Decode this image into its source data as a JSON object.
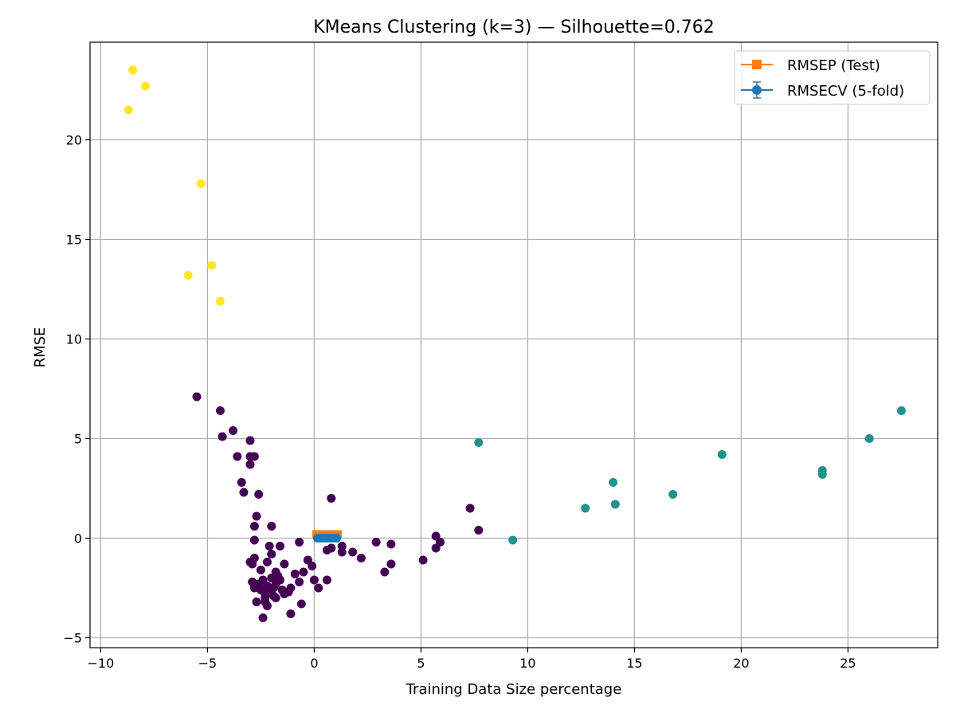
{
  "chart_data": {
    "type": "scatter",
    "title": "KMeans Clustering (k=3) — Silhouette=0.762",
    "xlabel": "Training Data Size percentage",
    "ylabel": "RMSE",
    "xlim": [
      -10.5,
      29.2
    ],
    "ylim": [
      -5.5,
      24.9
    ],
    "xticks": [
      -10,
      -5,
      0,
      5,
      10,
      15,
      20,
      25
    ],
    "yticks": [
      -5,
      0,
      5,
      10,
      15,
      20
    ],
    "xtick_labels": [
      "−10",
      "−5",
      "0",
      "5",
      "10",
      "15",
      "20",
      "25"
    ],
    "ytick_labels": [
      "−5",
      "0",
      "5",
      "10",
      "15",
      "20"
    ],
    "grid": true,
    "legend_position": "top-right",
    "colors": {
      "cluster_0": "#440154",
      "cluster_1": "#21918c",
      "cluster_2": "#fde725",
      "rmsep": "#ff7f0e",
      "rmsecv": "#1f77b4",
      "grid": "#b0b0b0"
    },
    "series": [
      {
        "name": "RMSEP (Test)",
        "kind": "line",
        "marker": "square",
        "points": [
          [
            0.1,
            0.2
          ],
          [
            0.2,
            0.2
          ],
          [
            0.3,
            0.2
          ],
          [
            0.4,
            0.2
          ],
          [
            0.5,
            0.2
          ],
          [
            0.6,
            0.2
          ],
          [
            0.7,
            0.2
          ],
          [
            0.8,
            0.2
          ],
          [
            0.9,
            0.2
          ],
          [
            1.0,
            0.2
          ],
          [
            1.1,
            0.2
          ]
        ]
      },
      {
        "name": "RMSECV (5-fold)",
        "kind": "errorbar",
        "marker": "circle",
        "points": [
          [
            0.15,
            0.0
          ],
          [
            0.3,
            0.0
          ],
          [
            0.45,
            0.0
          ],
          [
            0.6,
            0.0
          ],
          [
            0.75,
            0.0
          ],
          [
            0.9,
            0.0
          ],
          [
            1.05,
            0.0
          ]
        ]
      }
    ],
    "clusters": [
      {
        "cluster": 2,
        "points": [
          [
            -8.5,
            23.5
          ],
          [
            -7.9,
            22.7
          ],
          [
            -8.7,
            21.5
          ],
          [
            -5.3,
            17.8
          ],
          [
            -4.8,
            13.7
          ],
          [
            -5.9,
            13.2
          ],
          [
            -4.4,
            11.9
          ]
        ]
      },
      {
        "cluster": 1,
        "points": [
          [
            7.7,
            4.8
          ],
          [
            9.3,
            -0.1
          ],
          [
            12.7,
            1.5
          ],
          [
            14.0,
            2.8
          ],
          [
            14.1,
            1.7
          ],
          [
            16.8,
            2.2
          ],
          [
            19.1,
            4.2
          ],
          [
            23.8,
            3.2
          ],
          [
            23.8,
            3.4
          ],
          [
            26.0,
            5.0
          ],
          [
            27.5,
            6.4
          ]
        ]
      },
      {
        "cluster": 0,
        "points": [
          [
            -5.5,
            7.1
          ],
          [
            -4.4,
            6.4
          ],
          [
            -3.8,
            5.4
          ],
          [
            -4.3,
            5.1
          ],
          [
            -3.0,
            4.9
          ],
          [
            -3.6,
            4.1
          ],
          [
            -3.0,
            4.1
          ],
          [
            -2.8,
            4.1
          ],
          [
            -3.0,
            3.7
          ],
          [
            -3.4,
            2.8
          ],
          [
            -3.3,
            2.3
          ],
          [
            -2.6,
            2.2
          ],
          [
            -2.7,
            1.1
          ],
          [
            -2.8,
            0.6
          ],
          [
            -2.0,
            0.6
          ],
          [
            -2.8,
            -0.1
          ],
          [
            -2.1,
            -0.4
          ],
          [
            -1.6,
            -0.4
          ],
          [
            -2.0,
            -0.8
          ],
          [
            -2.8,
            -1.0
          ],
          [
            -3.0,
            -1.2
          ],
          [
            -2.9,
            -1.3
          ],
          [
            -2.2,
            -1.2
          ],
          [
            -1.4,
            -1.3
          ],
          [
            -2.5,
            -1.6
          ],
          [
            -1.8,
            -1.7
          ],
          [
            -1.7,
            -1.9
          ],
          [
            -0.9,
            -1.8
          ],
          [
            -2.4,
            -2.1
          ],
          [
            -2.0,
            -2.0
          ],
          [
            -1.6,
            -2.1
          ],
          [
            -2.9,
            -2.2
          ],
          [
            -2.6,
            -2.3
          ],
          [
            -2.2,
            -2.4
          ],
          [
            -1.8,
            -2.3
          ],
          [
            -0.7,
            -2.2
          ],
          [
            -2.8,
            -2.5
          ],
          [
            -2.5,
            -2.6
          ],
          [
            -2.1,
            -2.6
          ],
          [
            -1.9,
            -2.5
          ],
          [
            -1.5,
            -2.6
          ],
          [
            -1.1,
            -2.5
          ],
          [
            -2.3,
            -2.8
          ],
          [
            -1.9,
            -2.9
          ],
          [
            -1.4,
            -2.8
          ],
          [
            -1.2,
            -2.7
          ],
          [
            -2.3,
            -3.0
          ],
          [
            -1.8,
            -3.0
          ],
          [
            -2.7,
            -3.2
          ],
          [
            -2.3,
            -3.2
          ],
          [
            -0.6,
            -3.3
          ],
          [
            -2.2,
            -3.4
          ],
          [
            -1.1,
            -3.8
          ],
          [
            -2.4,
            -4.0
          ],
          [
            -0.5,
            -1.7
          ],
          [
            -0.3,
            -1.1
          ],
          [
            -0.1,
            -1.4
          ],
          [
            -0.7,
            -0.2
          ],
          [
            0.0,
            -2.1
          ],
          [
            0.2,
            -2.5
          ],
          [
            0.6,
            -2.1
          ],
          [
            0.6,
            -0.6
          ],
          [
            0.8,
            -0.5
          ],
          [
            0.8,
            2.0
          ],
          [
            1.3,
            -0.4
          ],
          [
            1.3,
            -0.7
          ],
          [
            1.8,
            -0.7
          ],
          [
            2.2,
            -1.0
          ],
          [
            2.9,
            -0.2
          ],
          [
            3.3,
            -1.7
          ],
          [
            3.6,
            -1.3
          ],
          [
            3.6,
            -0.3
          ],
          [
            5.1,
            -1.1
          ],
          [
            5.7,
            0.1
          ],
          [
            5.7,
            -0.5
          ],
          [
            5.9,
            -0.2
          ],
          [
            7.3,
            1.5
          ],
          [
            7.7,
            0.4
          ]
        ]
      }
    ]
  }
}
